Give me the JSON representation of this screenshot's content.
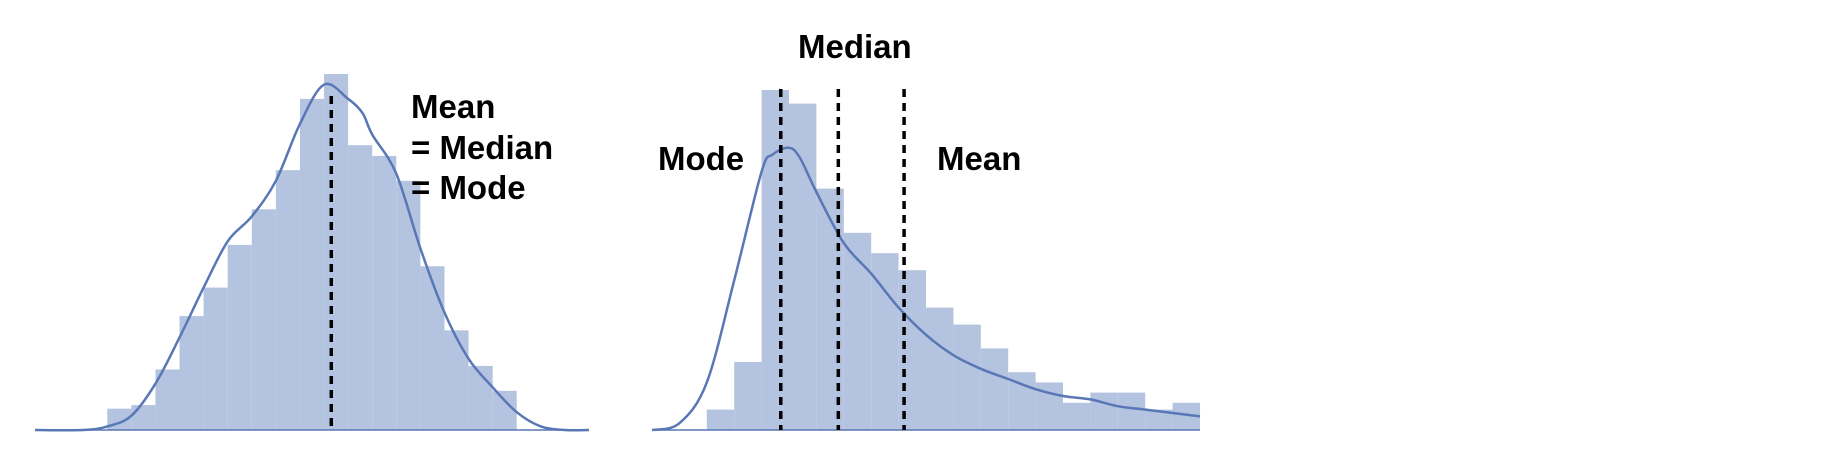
{
  "colors": {
    "bars": "#b4c4e0",
    "curve": "#5977b5",
    "reference_lines": "#000000"
  },
  "chart_data": [
    {
      "type": "bar",
      "bins": [
        {
          "x0": 0.0,
          "x1": 0.05,
          "height": 0.0
        },
        {
          "x0": 0.05,
          "x1": 0.1,
          "height": 0.0
        },
        {
          "x0": 0.1,
          "x1": 0.15,
          "height": 0.0
        },
        {
          "x0": 0.15,
          "x1": 0.2,
          "height": 0.06
        },
        {
          "x0": 0.2,
          "x1": 0.25,
          "height": 0.07
        },
        {
          "x0": 0.25,
          "x1": 0.3,
          "height": 0.17
        },
        {
          "x0": 0.3,
          "x1": 0.35,
          "height": 0.32
        },
        {
          "x0": 0.35,
          "x1": 0.4,
          "height": 0.4
        },
        {
          "x0": 0.4,
          "x1": 0.45,
          "height": 0.52
        },
        {
          "x0": 0.45,
          "x1": 0.5,
          "height": 0.62
        },
        {
          "x0": 0.5,
          "x1": 0.55,
          "height": 0.73
        },
        {
          "x0": 0.55,
          "x1": 0.6,
          "height": 0.93
        },
        {
          "x0": 0.6,
          "x1": 0.65,
          "height": 1.0
        },
        {
          "x0": 0.65,
          "x1": 0.7,
          "height": 0.8
        },
        {
          "x0": 0.7,
          "x1": 0.75,
          "height": 0.77
        },
        {
          "x0": 0.75,
          "x1": 0.8,
          "height": 0.7
        },
        {
          "x0": 0.8,
          "x1": 0.85,
          "height": 0.46
        },
        {
          "x0": 0.85,
          "x1": 0.9,
          "height": 0.28
        },
        {
          "x0": 0.9,
          "x1": 0.95,
          "height": 0.18
        },
        {
          "x0": 0.95,
          "x1": 1.0,
          "height": 0.11
        }
      ],
      "density_curve": {
        "x": [
          0.0,
          0.1,
          0.15,
          0.2,
          0.25,
          0.3,
          0.35,
          0.4,
          0.45,
          0.5,
          0.55,
          0.6,
          0.65,
          0.68,
          0.7,
          0.75,
          0.8,
          0.85,
          0.9,
          0.95,
          1.0,
          1.05,
          1.1,
          1.15
        ],
        "y": [
          0.0,
          0.0,
          0.01,
          0.04,
          0.13,
          0.26,
          0.4,
          0.53,
          0.6,
          0.7,
          0.86,
          0.97,
          0.93,
          0.89,
          0.83,
          0.72,
          0.51,
          0.33,
          0.2,
          0.12,
          0.05,
          0.01,
          0.0,
          0.0
        ]
      },
      "reference_lines": [
        {
          "x": 0.615,
          "labels": [
            "Mean",
            "= Median",
            "= Mode"
          ],
          "label_side": "right"
        }
      ]
    },
    {
      "type": "bar",
      "bins": [
        {
          "x0": 0.0,
          "x1": 0.05,
          "height": 0.0
        },
        {
          "x0": 0.05,
          "x1": 0.1,
          "height": 0.0
        },
        {
          "x0": 0.1,
          "x1": 0.15,
          "height": 0.06
        },
        {
          "x0": 0.15,
          "x1": 0.2,
          "height": 0.2
        },
        {
          "x0": 0.2,
          "x1": 0.25,
          "height": 1.0
        },
        {
          "x0": 0.25,
          "x1": 0.3,
          "height": 0.96
        },
        {
          "x0": 0.3,
          "x1": 0.35,
          "height": 0.71
        },
        {
          "x0": 0.35,
          "x1": 0.4,
          "height": 0.58
        },
        {
          "x0": 0.4,
          "x1": 0.45,
          "height": 0.52
        },
        {
          "x0": 0.45,
          "x1": 0.5,
          "height": 0.47
        },
        {
          "x0": 0.5,
          "x1": 0.55,
          "height": 0.36
        },
        {
          "x0": 0.55,
          "x1": 0.6,
          "height": 0.31
        },
        {
          "x0": 0.6,
          "x1": 0.65,
          "height": 0.24
        },
        {
          "x0": 0.65,
          "x1": 0.7,
          "height": 0.17
        },
        {
          "x0": 0.7,
          "x1": 0.75,
          "height": 0.14
        },
        {
          "x0": 0.75,
          "x1": 0.8,
          "height": 0.08
        },
        {
          "x0": 0.8,
          "x1": 0.85,
          "height": 0.11
        },
        {
          "x0": 0.85,
          "x1": 0.9,
          "height": 0.11
        },
        {
          "x0": 0.9,
          "x1": 0.95,
          "height": 0.06
        },
        {
          "x0": 0.95,
          "x1": 1.0,
          "height": 0.08
        }
      ],
      "density_curve": {
        "x": [
          0.0,
          0.05,
          0.1,
          0.15,
          0.2,
          0.22,
          0.25,
          0.27,
          0.3,
          0.35,
          0.4,
          0.45,
          0.5,
          0.55,
          0.6,
          0.65,
          0.7,
          0.75,
          0.8,
          0.85,
          0.9,
          0.95,
          1.0
        ],
        "y": [
          0.0,
          0.02,
          0.14,
          0.44,
          0.76,
          0.81,
          0.83,
          0.8,
          0.7,
          0.55,
          0.46,
          0.36,
          0.28,
          0.22,
          0.18,
          0.15,
          0.12,
          0.1,
          0.09,
          0.07,
          0.06,
          0.05,
          0.04
        ]
      },
      "reference_lines": [
        {
          "x": 0.235,
          "labels": [
            "Mode"
          ],
          "label_side": "left"
        },
        {
          "x": 0.34,
          "labels": [
            "Median"
          ],
          "label_side": "top"
        },
        {
          "x": 0.46,
          "labels": [
            "Mean"
          ],
          "label_side": "right"
        }
      ]
    }
  ]
}
